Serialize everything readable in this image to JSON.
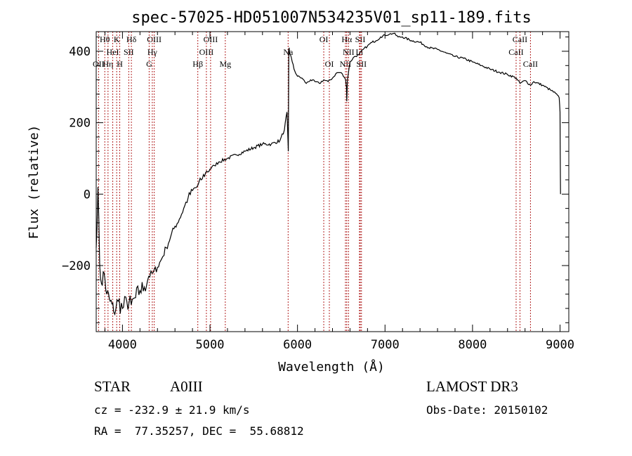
{
  "chart_data": {
    "type": "line",
    "title": "spec-57025-HD051007N534235V01_sp11-189.fits",
    "xlabel": "Wavelength (Å)",
    "ylabel": "Flux (relative)",
    "xlim": [
      3700,
      9100
    ],
    "ylim": [
      -385,
      455
    ],
    "xticks": [
      4000,
      5000,
      6000,
      7000,
      8000,
      9000
    ],
    "yticks": [
      -200,
      0,
      200,
      400
    ],
    "grid": false,
    "series": [
      {
        "x": [
          3700,
          3720,
          3740,
          3760,
          3790,
          3820,
          3860,
          3900,
          3950,
          4000,
          4050,
          4100,
          4150,
          4200,
          4250,
          4300,
          4350,
          4400,
          4450,
          4500,
          4550,
          4600,
          4650,
          4700,
          4750,
          4800,
          4850,
          4900,
          4950,
          5000,
          5050,
          5100,
          5200,
          5300,
          5400,
          5500,
          5600,
          5700,
          5800,
          5850,
          5880,
          5895,
          5900,
          5905,
          5910,
          5920,
          5940,
          5960,
          6000,
          6050,
          6100,
          6150,
          6200,
          6250,
          6300,
          6350,
          6400,
          6450,
          6500,
          6550,
          6560,
          6563,
          6570,
          6600,
          6650,
          6700,
          6750,
          6800,
          6850,
          6900,
          6950,
          7000,
          7050,
          7100,
          7150,
          7200,
          7300,
          7400,
          7500,
          7600,
          7700,
          7800,
          7900,
          8000,
          8100,
          8200,
          8300,
          8400,
          8500,
          8542,
          8600,
          8662,
          8700,
          8800,
          8900,
          8950,
          8990,
          9000,
          9005
        ],
        "y": [
          -150,
          20,
          -200,
          -250,
          -220,
          -280,
          -300,
          -330,
          -300,
          -320,
          -300,
          -310,
          -290,
          -270,
          -260,
          -230,
          -220,
          -205,
          -180,
          -150,
          -120,
          -90,
          -70,
          -40,
          -10,
          10,
          20,
          40,
          60,
          70,
          80,
          90,
          100,
          110,
          120,
          130,
          140,
          140,
          150,
          180,
          230,
          120,
          380,
          410,
          395,
          390,
          370,
          350,
          330,
          325,
          310,
          320,
          315,
          310,
          320,
          315,
          325,
          340,
          340,
          320,
          300,
          260,
          320,
          370,
          385,
          390,
          405,
          415,
          425,
          430,
          440,
          445,
          448,
          450,
          440,
          440,
          430,
          425,
          410,
          405,
          395,
          385,
          380,
          370,
          360,
          350,
          342,
          335,
          325,
          310,
          318,
          305,
          315,
          305,
          290,
          282,
          270,
          230,
          0
        ]
      }
    ],
    "lines": [
      {
        "label": "Hθ",
        "x": 3798,
        "row": 1
      },
      {
        "label": "OII",
        "x": 3727,
        "row": 3
      },
      {
        "label": "Hη",
        "x": 3835,
        "row": 3
      },
      {
        "label": "HeI",
        "x": 3889,
        "row": 2
      },
      {
        "label": "K",
        "x": 3934,
        "row": 1
      },
      {
        "label": "H",
        "x": 3969,
        "row": 3
      },
      {
        "label": "SII",
        "x": 4072,
        "row": 2
      },
      {
        "label": "Hδ",
        "x": 4102,
        "row": 1
      },
      {
        "label": "G",
        "x": 4305,
        "row": 3
      },
      {
        "label": "OIII",
        "x": 4363,
        "row": 1
      },
      {
        "label": "Hγ",
        "x": 4341,
        "row": 2
      },
      {
        "label": "Hβ",
        "x": 4861,
        "row": 3
      },
      {
        "label": "OIII",
        "x": 4959,
        "row": 2
      },
      {
        "label": "OIII",
        "x": 5007,
        "row": 1
      },
      {
        "label": "Mg",
        "x": 5175,
        "row": 3
      },
      {
        "label": "Na",
        "x": 5893,
        "row": 2
      },
      {
        "label": "OI",
        "x": 6300,
        "row": 1
      },
      {
        "label": "OI",
        "x": 6364,
        "row": 3
      },
      {
        "label": "NII",
        "x": 6548,
        "row": 3
      },
      {
        "label": "Hα",
        "x": 6563,
        "row": 1
      },
      {
        "label": "NII",
        "x": 6583,
        "row": 2
      },
      {
        "label": "Li",
        "x": 6708,
        "row": 2
      },
      {
        "label": "SII",
        "x": 6717,
        "row": 1
      },
      {
        "label": "SII",
        "x": 6731,
        "row": 3
      },
      {
        "label": "CaII",
        "x": 8498,
        "row": 2
      },
      {
        "label": "CaII",
        "x": 8542,
        "row": 1
      },
      {
        "label": "CaII",
        "x": 8662,
        "row": 3
      }
    ]
  },
  "info": {
    "object_class": "STAR",
    "subclass": "A0III",
    "survey": "LAMOST DR3",
    "cz": "cz = -232.9 ± 21.9 km/s",
    "obs_date": "Obs-Date: 20150102",
    "coords": "RA =  77.35257, DEC =  55.68812"
  }
}
